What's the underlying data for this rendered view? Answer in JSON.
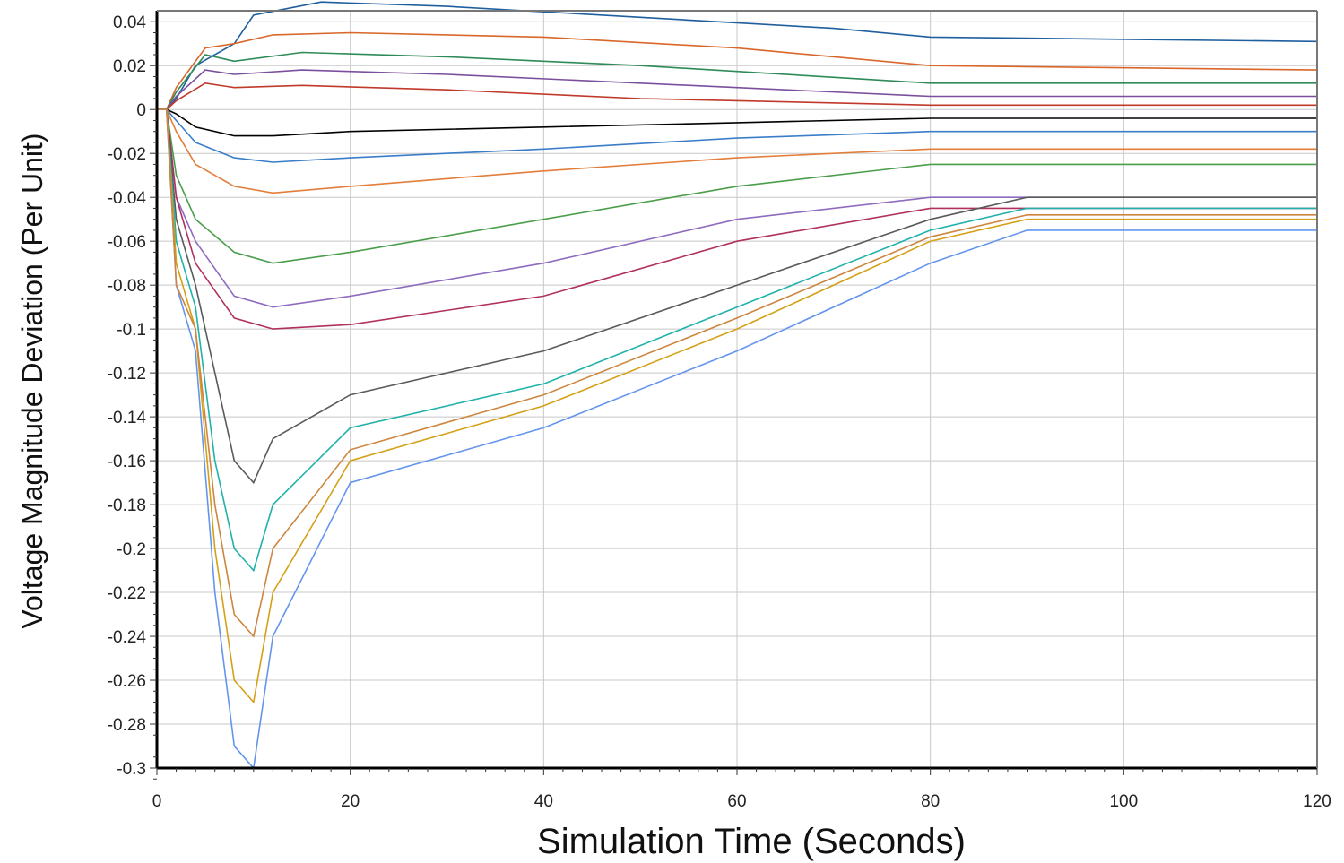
{
  "chart_data": {
    "type": "line",
    "title": "",
    "xlabel": "Simulation Time (Seconds)",
    "ylabel": "Voltage Magnitude Deviation (Per Unit)",
    "xlim": [
      0,
      120
    ],
    "ylim": [
      -0.3,
      0.045
    ],
    "grid": true,
    "legend": "none",
    "x_ticks": [
      "0",
      "20",
      "40",
      "60",
      "80",
      "100",
      "120"
    ],
    "x_tick_values": [
      0,
      20,
      40,
      60,
      80,
      100,
      120
    ],
    "y_ticks": [
      "0.04",
      "0.02",
      "0",
      "-0.02",
      "-0.04",
      "-0.06",
      "-0.08",
      "-0.1",
      "-0.12",
      "-0.14",
      "-0.16",
      "-0.18",
      "-0.2",
      "-0.22",
      "-0.24",
      "-0.26",
      "-0.28",
      "-0.3"
    ],
    "y_tick_values": [
      0.04,
      0.02,
      0,
      -0.02,
      -0.04,
      -0.06,
      -0.08,
      -0.1,
      -0.12,
      -0.14,
      -0.16,
      -0.18,
      -0.2,
      -0.22,
      -0.24,
      -0.26,
      -0.28,
      -0.3
    ],
    "series_colors": [
      "#1f5f9e",
      "#d9672a",
      "#2e8b57",
      "#7b4f9e",
      "#c0392b",
      "#000000",
      "#3a7dc9",
      "#e37d3a",
      "#4a9e4a",
      "#8e6bbf",
      "#b03060",
      "#5a5a5a",
      "#20b2aa",
      "#d4a017",
      "#6495ed",
      "#cd853f"
    ],
    "series": [
      {
        "x": [
          0,
          1,
          2,
          4,
          8,
          10,
          17,
          30,
          50,
          70,
          80,
          120
        ],
        "y": [
          0,
          0,
          0.005,
          0.02,
          0.03,
          0.043,
          0.049,
          0.047,
          0.042,
          0.037,
          0.033,
          0.031
        ]
      },
      {
        "x": [
          0,
          1,
          2,
          5,
          8,
          12,
          20,
          40,
          60,
          80,
          120
        ],
        "y": [
          0,
          0,
          0.01,
          0.028,
          0.03,
          0.034,
          0.035,
          0.033,
          0.028,
          0.02,
          0.018
        ]
      },
      {
        "x": [
          0,
          1,
          2,
          5,
          8,
          15,
          30,
          50,
          80,
          120
        ],
        "y": [
          0,
          0,
          0.008,
          0.025,
          0.022,
          0.026,
          0.024,
          0.02,
          0.012,
          0.012
        ]
      },
      {
        "x": [
          0,
          1,
          2,
          5,
          8,
          15,
          30,
          50,
          80,
          120
        ],
        "y": [
          0,
          0,
          0.006,
          0.018,
          0.016,
          0.018,
          0.016,
          0.012,
          0.006,
          0.006
        ]
      },
      {
        "x": [
          0,
          1,
          2,
          5,
          8,
          15,
          30,
          50,
          80,
          120
        ],
        "y": [
          0,
          0,
          0.004,
          0.012,
          0.01,
          0.011,
          0.009,
          0.005,
          0.002,
          0.002
        ]
      },
      {
        "x": [
          0,
          1,
          2,
          4,
          8,
          12,
          20,
          40,
          60,
          80,
          120
        ],
        "y": [
          0,
          0,
          -0.002,
          -0.008,
          -0.012,
          -0.012,
          -0.01,
          -0.008,
          -0.006,
          -0.004,
          -0.004
        ]
      },
      {
        "x": [
          0,
          1,
          2,
          4,
          8,
          12,
          20,
          40,
          60,
          80,
          120
        ],
        "y": [
          0,
          0,
          -0.005,
          -0.015,
          -0.022,
          -0.024,
          -0.022,
          -0.018,
          -0.013,
          -0.01,
          -0.01
        ]
      },
      {
        "x": [
          0,
          1,
          2,
          4,
          8,
          12,
          20,
          40,
          60,
          80,
          120
        ],
        "y": [
          0,
          0,
          -0.01,
          -0.025,
          -0.035,
          -0.038,
          -0.035,
          -0.028,
          -0.022,
          -0.018,
          -0.018
        ]
      },
      {
        "x": [
          0,
          1,
          2,
          4,
          8,
          12,
          20,
          40,
          60,
          80,
          120
        ],
        "y": [
          0,
          0,
          -0.03,
          -0.05,
          -0.065,
          -0.07,
          -0.065,
          -0.05,
          -0.035,
          -0.025,
          -0.025
        ]
      },
      {
        "x": [
          0,
          1,
          2,
          4,
          8,
          12,
          20,
          40,
          60,
          80,
          120
        ],
        "y": [
          0,
          0,
          -0.04,
          -0.06,
          -0.085,
          -0.09,
          -0.085,
          -0.07,
          -0.05,
          -0.04,
          -0.04
        ]
      },
      {
        "x": [
          0,
          1,
          2,
          4,
          8,
          12,
          20,
          40,
          60,
          80,
          120
        ],
        "y": [
          0,
          0,
          -0.04,
          -0.07,
          -0.095,
          -0.1,
          -0.098,
          -0.085,
          -0.06,
          -0.045,
          -0.045
        ]
      },
      {
        "x": [
          0,
          1,
          2,
          4,
          6,
          8,
          10,
          12,
          20,
          40,
          60,
          80,
          90,
          120
        ],
        "y": [
          0,
          0,
          -0.05,
          -0.08,
          -0.12,
          -0.16,
          -0.17,
          -0.15,
          -0.13,
          -0.11,
          -0.08,
          -0.05,
          -0.04,
          -0.04
        ]
      },
      {
        "x": [
          0,
          1,
          2,
          4,
          6,
          8,
          10,
          12,
          20,
          40,
          60,
          80,
          90,
          120
        ],
        "y": [
          0,
          0,
          -0.06,
          -0.09,
          -0.16,
          -0.2,
          -0.21,
          -0.18,
          -0.145,
          -0.125,
          -0.09,
          -0.055,
          -0.045,
          -0.045
        ]
      },
      {
        "x": [
          0,
          1,
          2,
          4,
          6,
          8,
          10,
          12,
          20,
          40,
          60,
          80,
          90,
          120
        ],
        "y": [
          0,
          0,
          -0.07,
          -0.1,
          -0.2,
          -0.26,
          -0.27,
          -0.22,
          -0.16,
          -0.135,
          -0.1,
          -0.06,
          -0.05,
          -0.05
        ]
      },
      {
        "x": [
          0,
          1,
          2,
          4,
          6,
          8,
          10,
          12,
          20,
          40,
          60,
          80,
          90,
          120
        ],
        "y": [
          0,
          0,
          -0.08,
          -0.11,
          -0.22,
          -0.29,
          -0.3,
          -0.24,
          -0.17,
          -0.145,
          -0.11,
          -0.07,
          -0.055,
          -0.055
        ]
      },
      {
        "x": [
          0,
          1,
          2,
          4,
          6,
          8,
          10,
          12,
          20,
          40,
          60,
          80,
          90,
          120
        ],
        "y": [
          0,
          0,
          -0.08,
          -0.1,
          -0.18,
          -0.23,
          -0.24,
          -0.2,
          -0.155,
          -0.13,
          -0.095,
          -0.058,
          -0.048,
          -0.048
        ]
      }
    ]
  }
}
